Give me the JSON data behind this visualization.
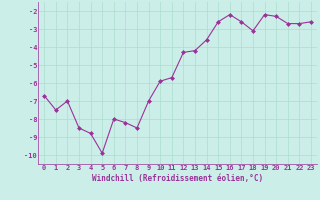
{
  "x": [
    0,
    1,
    2,
    3,
    4,
    5,
    6,
    7,
    8,
    9,
    10,
    11,
    12,
    13,
    14,
    15,
    16,
    17,
    18,
    19,
    20,
    21,
    22,
    23
  ],
  "y": [
    -6.7,
    -7.5,
    -7.0,
    -8.5,
    -8.8,
    -9.9,
    -8.0,
    -8.2,
    -8.5,
    -7.0,
    -5.9,
    -5.7,
    -4.3,
    -4.2,
    -3.6,
    -2.6,
    -2.2,
    -2.6,
    -3.1,
    -2.2,
    -2.3,
    -2.7,
    -2.7,
    -2.6
  ],
  "line_color": "#993399",
  "marker": "D",
  "marker_size": 2,
  "linewidth": 0.8,
  "xlabel": "Windchill (Refroidissement éolien,°C)",
  "xlabel_fontsize": 5.5,
  "xtick_labels": [
    "0",
    "1",
    "2",
    "3",
    "4",
    "5",
    "6",
    "7",
    "8",
    "9",
    "10",
    "11",
    "12",
    "13",
    "14",
    "15",
    "16",
    "17",
    "18",
    "19",
    "20",
    "21",
    "22",
    "23"
  ],
  "ytick_values": [
    -10,
    -9,
    -8,
    -7,
    -6,
    -5,
    -4,
    -3,
    -2
  ],
  "ylim": [
    -10.5,
    -1.5
  ],
  "xlim": [
    -0.5,
    23.5
  ],
  "grid_color": "#aaddcc",
  "background_color": "#cceee8",
  "tick_fontsize": 5,
  "tick_color": "#993399",
  "label_color": "#993399",
  "spine_color": "#993399"
}
